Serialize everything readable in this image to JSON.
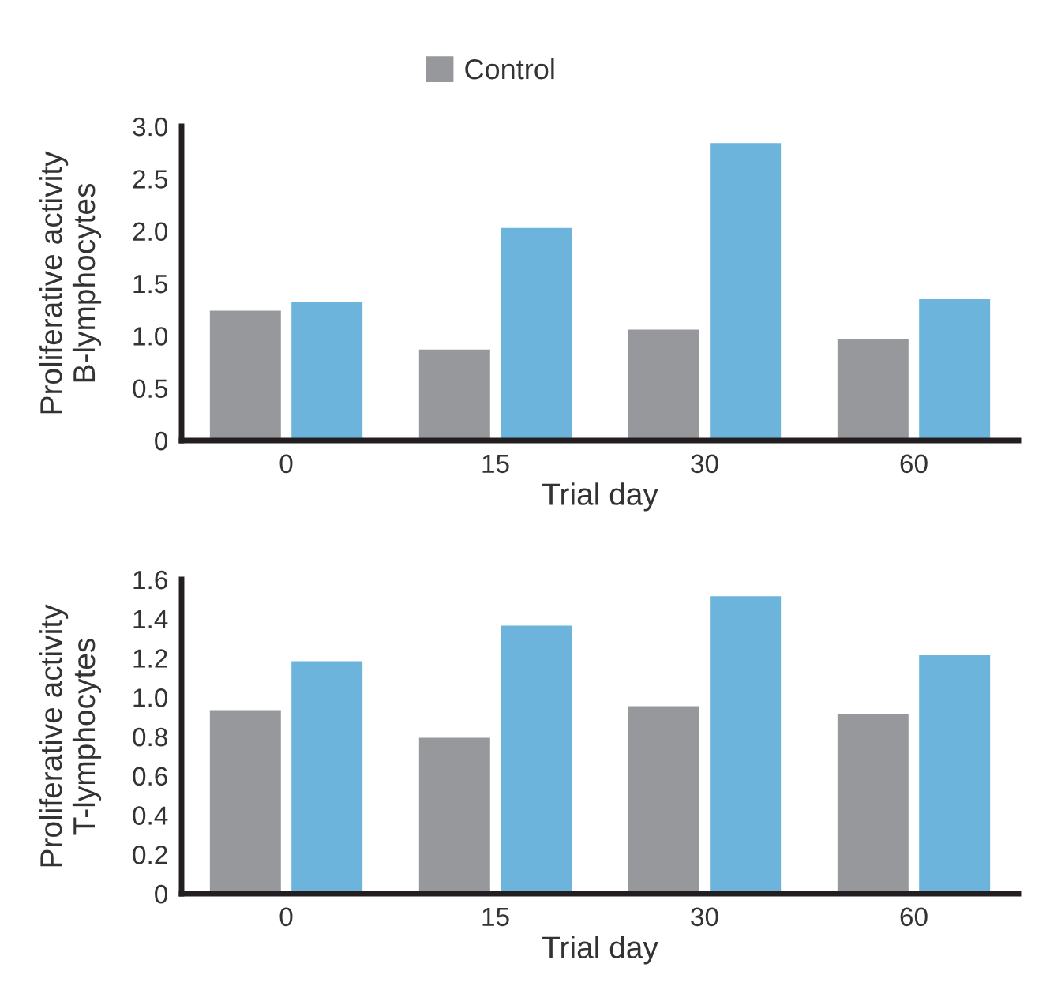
{
  "chart_data": [
    {
      "type": "bar",
      "categories": [
        "0",
        "15",
        "30",
        "60"
      ],
      "xlabel": "Trial day",
      "ylabel": "Proliferative activity\nB-lymphocytes",
      "ylim": [
        0,
        3.0
      ],
      "yticks": [
        0,
        {
          "value": 0.5,
          "label": "0.5"
        },
        {
          "value": 1.0,
          "label": "1.0"
        },
        {
          "value": 1.5,
          "label": "1.5"
        },
        {
          "value": 2.0,
          "label": "2.0"
        },
        {
          "value": 2.5,
          "label": "2.5"
        },
        {
          "value": 3.0,
          "label": "3.0"
        }
      ],
      "legend": "top",
      "grid": false,
      "series": [
        {
          "name": "Control",
          "color": "#97989b",
          "values": [
            1.25,
            0.88,
            1.07,
            0.98
          ]
        },
        {
          "color": "#6db4dd",
          "values": [
            1.33,
            2.04,
            2.85,
            1.36
          ]
        }
      ]
    },
    {
      "type": "bar",
      "categories": [
        "0",
        "15",
        "30",
        "60"
      ],
      "xlabel": "Trial day",
      "ylabel": "Proliferative activity\nT-lymphocytes",
      "ylim": [
        0,
        1.6
      ],
      "yticks": [
        0,
        0.2,
        0.4,
        0.6,
        0.8,
        {
          "value": 1.0,
          "label": "1.0"
        },
        1.2,
        1.4,
        1.6
      ],
      "grid": false,
      "series": [
        {
          "color": "#97989b",
          "values": [
            0.94,
            0.8,
            0.96,
            0.92
          ]
        },
        {
          "color": "#6db4dd",
          "values": [
            1.19,
            1.37,
            1.52,
            1.22
          ]
        }
      ]
    }
  ]
}
